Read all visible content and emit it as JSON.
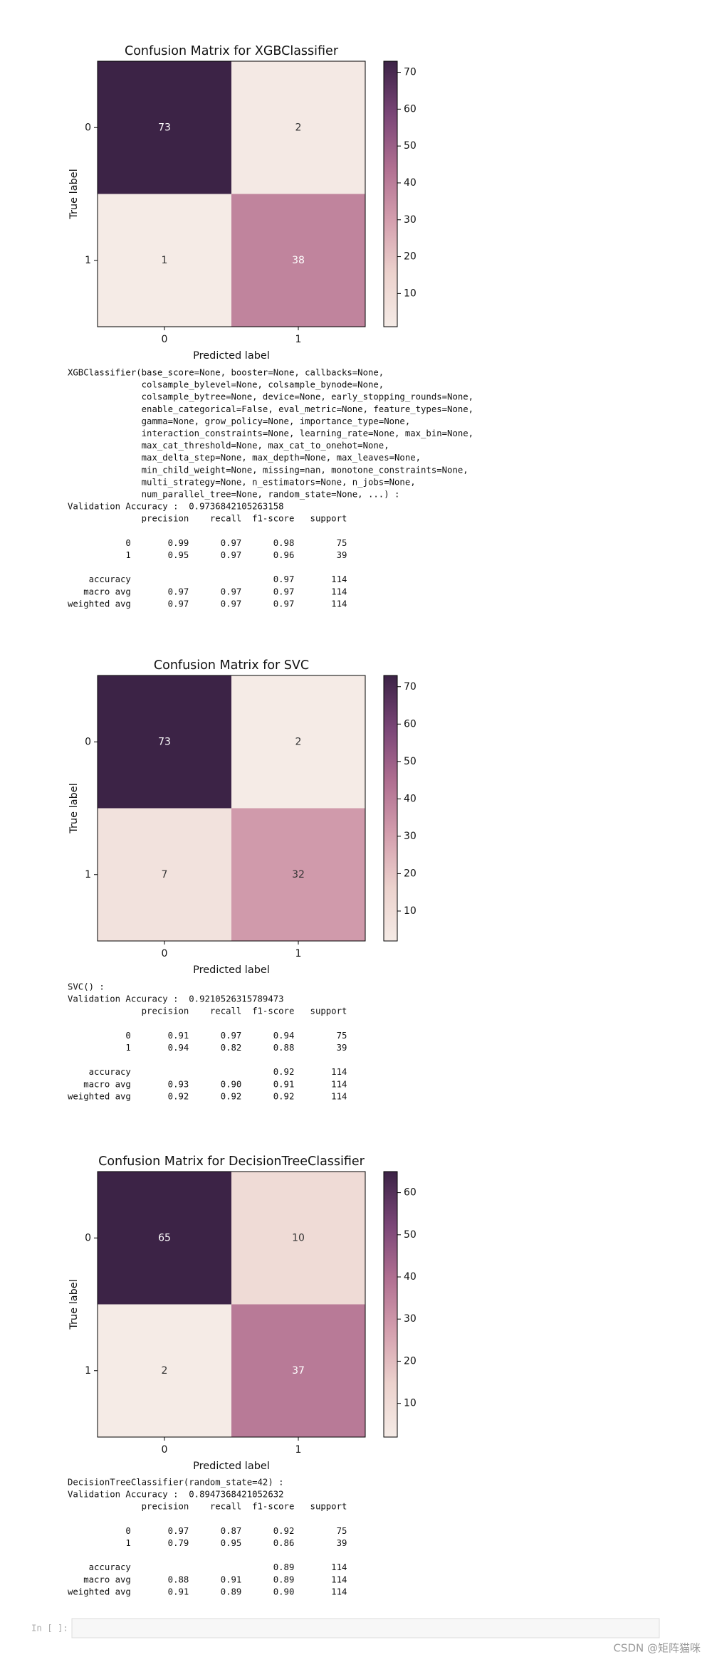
{
  "chart_data": [
    {
      "type": "heatmap",
      "title": "Confusion Matrix for XGBClassifier",
      "xlabel": "Predicted label",
      "ylabel": "True label",
      "xticks": [
        "0",
        "1"
      ],
      "yticks": [
        "0",
        "1"
      ],
      "values": [
        [
          73,
          2
        ],
        [
          1,
          38
        ]
      ],
      "clim": [
        1,
        73
      ],
      "cticks": [
        10,
        20,
        30,
        40,
        50,
        60,
        70
      ],
      "colormap": [
        "#f5ebe6",
        "#ecd2cd",
        "#d49fae",
        "#b06f91",
        "#7a4677",
        "#3c2346"
      ]
    },
    {
      "type": "heatmap",
      "title": "Confusion Matrix for SVC",
      "xlabel": "Predicted label",
      "ylabel": "True label",
      "xticks": [
        "0",
        "1"
      ],
      "yticks": [
        "0",
        "1"
      ],
      "values": [
        [
          73,
          2
        ],
        [
          7,
          32
        ]
      ],
      "clim": [
        2,
        73
      ],
      "cticks": [
        10,
        20,
        30,
        40,
        50,
        60,
        70
      ],
      "colormap": [
        "#f5ebe6",
        "#ecd2cd",
        "#d49fae",
        "#b06f91",
        "#7a4677",
        "#3c2346"
      ]
    },
    {
      "type": "heatmap",
      "title": "Confusion Matrix for DecisionTreeClassifier",
      "xlabel": "Predicted label",
      "ylabel": "True label",
      "xticks": [
        "0",
        "1"
      ],
      "yticks": [
        "0",
        "1"
      ],
      "values": [
        [
          65,
          10
        ],
        [
          2,
          37
        ]
      ],
      "clim": [
        2,
        65
      ],
      "cticks": [
        10,
        20,
        30,
        40,
        50,
        60
      ],
      "colormap": [
        "#f5ebe6",
        "#ecd2cd",
        "#d49fae",
        "#b06f91",
        "#7a4677",
        "#3c2346"
      ]
    }
  ],
  "outputs": [
    [
      [
        "XGBClassifier(base_score=None, booster=None, callbacks=None,",
        "              colsample_bylevel=None, colsample_bynode=None,",
        "              colsample_bytree=None, device=None, early_stopping_rounds=None,",
        "              enable_categorical=False, eval_metric=None, feature_types=None,",
        "              gamma=None, grow_policy=None, importance_type=None,",
        "              interaction_constraints=None, learning_rate=None, max_bin=None,",
        "              max_cat_threshold=None, max_cat_to_onehot=None,",
        "              max_delta_step=None, max_depth=None, max_leaves=None,",
        "              min_child_weight=None, missing=nan, monotone_constraints=None,",
        "              multi_strategy=None, n_estimators=None, n_jobs=None,",
        "              num_parallel_tree=None, random_state=None, ...) :",
        "Validation Accuracy :  0.9736842105263158",
        "              precision    recall  f1-score   support"
      ],
      [
        "           0       0.99      0.97      0.98        75",
        "           1       0.95      0.97      0.96        39"
      ],
      [
        "    accuracy                           0.97       114",
        "   macro avg       0.97      0.97      0.97       114",
        "weighted avg       0.97      0.97      0.97       114"
      ]
    ],
    [
      [
        "SVC() :",
        "Validation Accuracy :  0.9210526315789473",
        "              precision    recall  f1-score   support"
      ],
      [
        "           0       0.91      0.97      0.94        75",
        "           1       0.94      0.82      0.88        39"
      ],
      [
        "    accuracy                           0.92       114",
        "   macro avg       0.93      0.90      0.91       114",
        "weighted avg       0.92      0.92      0.92       114"
      ]
    ],
    [
      [
        "DecisionTreeClassifier(random_state=42) :",
        "Validation Accuracy :  0.8947368421052632",
        "              precision    recall  f1-score   support"
      ],
      [
        "           0       0.97      0.87      0.92        75",
        "           1       0.79      0.95      0.86        39"
      ],
      [
        "    accuracy                           0.89       114",
        "   macro avg       0.88      0.91      0.89       114",
        "weighted avg       0.91      0.89      0.90       114"
      ]
    ]
  ],
  "prompt": "In [ ]:",
  "watermark": "CSDN @矩阵猫咪"
}
